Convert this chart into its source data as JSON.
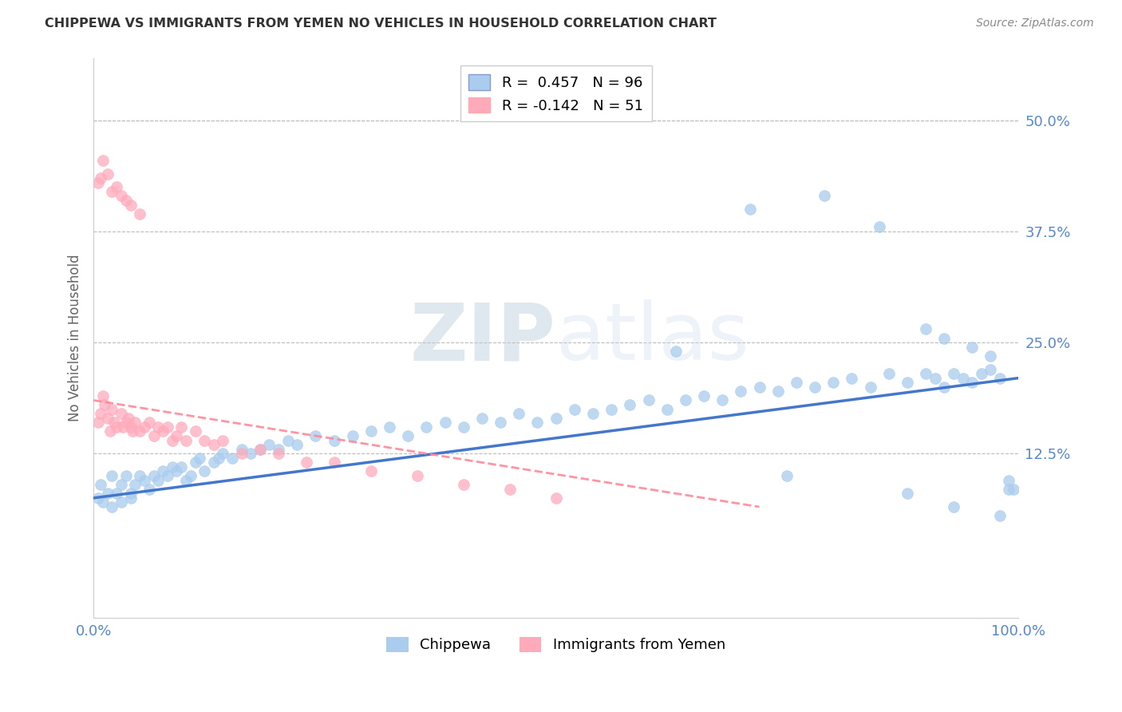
{
  "title": "CHIPPEWA VS IMMIGRANTS FROM YEMEN NO VEHICLES IN HOUSEHOLD CORRELATION CHART",
  "source": "Source: ZipAtlas.com",
  "ylabel": "No Vehicles in Household",
  "ytick_labels": [
    "12.5%",
    "25.0%",
    "37.5%",
    "50.0%"
  ],
  "ytick_values": [
    0.125,
    0.25,
    0.375,
    0.5
  ],
  "xlim": [
    0.0,
    1.0
  ],
  "ylim": [
    -0.06,
    0.57
  ],
  "legend_blue_r": "R =  0.457",
  "legend_blue_n": "N = 96",
  "legend_pink_r": "R = -0.142",
  "legend_pink_n": "N = 51",
  "legend_label_blue": "Chippewa",
  "legend_label_pink": "Immigrants from Yemen",
  "blue_color": "#AACCEE",
  "pink_color": "#FFAABB",
  "blue_line_color": "#4477CC",
  "pink_line_color": "#FF8899",
  "watermark_zip": "ZIP",
  "watermark_atlas": "atlas",
  "background_color": "#FFFFFF",
  "grid_color": "#BBBBBB",
  "tick_color": "#5588CC",
  "title_color": "#333333",
  "marker_size": 10,
  "blue_scatter_x": [
    0.005,
    0.008,
    0.01,
    0.015,
    0.02,
    0.02,
    0.025,
    0.03,
    0.03,
    0.035,
    0.04,
    0.04,
    0.045,
    0.05,
    0.055,
    0.06,
    0.065,
    0.07,
    0.075,
    0.08,
    0.085,
    0.09,
    0.095,
    0.1,
    0.105,
    0.11,
    0.115,
    0.12,
    0.13,
    0.135,
    0.14,
    0.15,
    0.16,
    0.17,
    0.18,
    0.19,
    0.2,
    0.21,
    0.22,
    0.24,
    0.26,
    0.28,
    0.3,
    0.32,
    0.34,
    0.36,
    0.38,
    0.4,
    0.42,
    0.44,
    0.46,
    0.48,
    0.5,
    0.52,
    0.54,
    0.56,
    0.58,
    0.6,
    0.62,
    0.64,
    0.66,
    0.68,
    0.7,
    0.72,
    0.74,
    0.76,
    0.78,
    0.8,
    0.82,
    0.84,
    0.86,
    0.88,
    0.9,
    0.91,
    0.92,
    0.93,
    0.94,
    0.95,
    0.96,
    0.97,
    0.98,
    0.99,
    0.995,
    0.63,
    0.71,
    0.79,
    0.85,
    0.9,
    0.92,
    0.95,
    0.97,
    0.99,
    0.75,
    0.88,
    0.93,
    0.98
  ],
  "blue_scatter_y": [
    0.075,
    0.09,
    0.07,
    0.08,
    0.065,
    0.1,
    0.08,
    0.07,
    0.09,
    0.1,
    0.08,
    0.075,
    0.09,
    0.1,
    0.095,
    0.085,
    0.1,
    0.095,
    0.105,
    0.1,
    0.11,
    0.105,
    0.11,
    0.095,
    0.1,
    0.115,
    0.12,
    0.105,
    0.115,
    0.12,
    0.125,
    0.12,
    0.13,
    0.125,
    0.13,
    0.135,
    0.13,
    0.14,
    0.135,
    0.145,
    0.14,
    0.145,
    0.15,
    0.155,
    0.145,
    0.155,
    0.16,
    0.155,
    0.165,
    0.16,
    0.17,
    0.16,
    0.165,
    0.175,
    0.17,
    0.175,
    0.18,
    0.185,
    0.175,
    0.185,
    0.19,
    0.185,
    0.195,
    0.2,
    0.195,
    0.205,
    0.2,
    0.205,
    0.21,
    0.2,
    0.215,
    0.205,
    0.215,
    0.21,
    0.2,
    0.215,
    0.21,
    0.205,
    0.215,
    0.22,
    0.21,
    0.095,
    0.085,
    0.24,
    0.4,
    0.415,
    0.38,
    0.265,
    0.255,
    0.245,
    0.235,
    0.085,
    0.1,
    0.08,
    0.065,
    0.055
  ],
  "pink_scatter_x": [
    0.005,
    0.008,
    0.01,
    0.012,
    0.015,
    0.018,
    0.02,
    0.022,
    0.025,
    0.03,
    0.032,
    0.035,
    0.038,
    0.04,
    0.042,
    0.045,
    0.05,
    0.055,
    0.06,
    0.065,
    0.07,
    0.075,
    0.08,
    0.085,
    0.09,
    0.095,
    0.1,
    0.11,
    0.12,
    0.13,
    0.14,
    0.16,
    0.18,
    0.2,
    0.23,
    0.26,
    0.3,
    0.35,
    0.4,
    0.45,
    0.5,
    0.005,
    0.008,
    0.01,
    0.015,
    0.02,
    0.025,
    0.03,
    0.035,
    0.04,
    0.05
  ],
  "pink_scatter_y": [
    0.16,
    0.17,
    0.19,
    0.18,
    0.165,
    0.15,
    0.175,
    0.16,
    0.155,
    0.17,
    0.155,
    0.16,
    0.165,
    0.155,
    0.15,
    0.16,
    0.15,
    0.155,
    0.16,
    0.145,
    0.155,
    0.15,
    0.155,
    0.14,
    0.145,
    0.155,
    0.14,
    0.15,
    0.14,
    0.135,
    0.14,
    0.125,
    0.13,
    0.125,
    0.115,
    0.115,
    0.105,
    0.1,
    0.09,
    0.085,
    0.075,
    0.43,
    0.435,
    0.455,
    0.44,
    0.42,
    0.425,
    0.415,
    0.41,
    0.405,
    0.395
  ],
  "blue_line_x": [
    0.0,
    1.0
  ],
  "blue_line_y": [
    0.075,
    0.21
  ],
  "pink_line_x": [
    0.0,
    0.72
  ],
  "pink_line_y": [
    0.185,
    0.065
  ]
}
